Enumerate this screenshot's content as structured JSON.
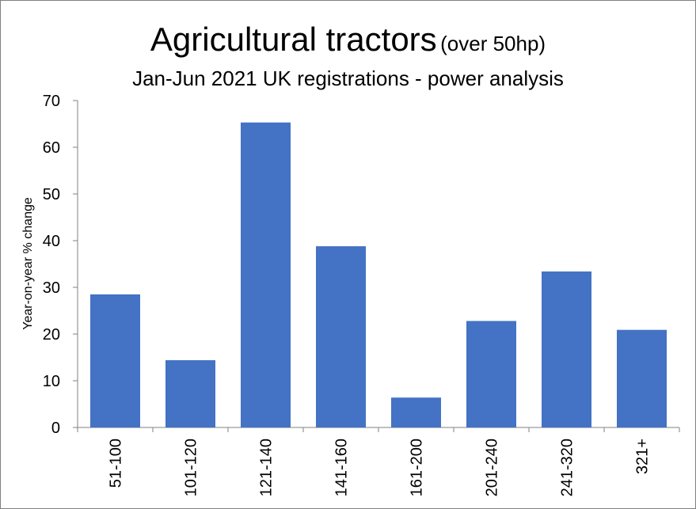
{
  "chart_data": {
    "type": "bar",
    "title": "Agricultural tractors",
    "title_suffix": "(over 50hp)",
    "subtitle": "Jan-Jun 2021 UK registrations - power analysis",
    "xlabel": "",
    "ylabel": "Year-on-year  % change",
    "categories": [
      "51-100",
      "101-120",
      "121-140",
      "141-160",
      "161-200",
      "201-240",
      "241-320",
      "321+"
    ],
    "series": [
      {
        "values": [
          28.5,
          14.4,
          65.3,
          38.8,
          6.4,
          22.8,
          33.4,
          20.9
        ]
      }
    ],
    "ylim": [
      0,
      70
    ],
    "yticks": [
      0,
      10,
      20,
      30,
      40,
      50,
      60,
      70
    ],
    "grid": false,
    "legend": "none",
    "bar_color": "#4472C4"
  }
}
